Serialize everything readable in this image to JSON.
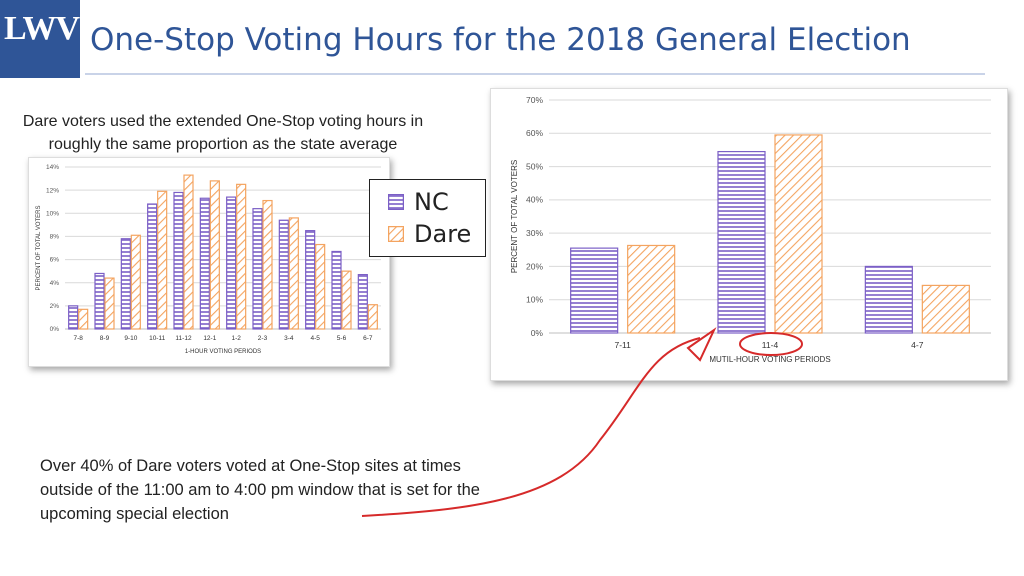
{
  "slide": {
    "logo_text": "LWV",
    "title": "One-Stop Voting Hours for the 2018 General Election",
    "caption_top": "Dare voters used the extended One-Stop voting hours in roughly the same proportion as the state average",
    "caption_bottom": "Over 40% of Dare voters voted at One-Stop sites at times outside of the 11:00 am to 4:00 pm window that is set for the upcoming special election"
  },
  "legend": {
    "items": [
      {
        "label": "NC",
        "color": "#7b5fc6"
      },
      {
        "label": "Dare",
        "color": "#f4a460"
      }
    ]
  },
  "colors": {
    "nc": "#7b5fc6",
    "dare": "#f4a460",
    "grid": "#d9d9d9",
    "annotation": "#d62a2a",
    "title": "#2f5597"
  },
  "chart_data": [
    {
      "type": "bar",
      "xlabel": "1-HOUR VOTING PERIODS",
      "ylabel": "PERCENT OF TOTAL VOTERS",
      "categories": [
        "7-8",
        "8-9",
        "9-10",
        "10-11",
        "11-12",
        "12-1",
        "1-2",
        "2-3",
        "3-4",
        "4-5",
        "5-6",
        "6-7"
      ],
      "series": [
        {
          "name": "NC",
          "values": [
            2.0,
            4.8,
            7.8,
            10.8,
            11.8,
            11.3,
            11.4,
            10.4,
            9.4,
            8.5,
            6.7,
            4.7
          ]
        },
        {
          "name": "Dare",
          "values": [
            1.7,
            4.4,
            8.1,
            11.9,
            13.3,
            12.8,
            12.5,
            11.1,
            9.6,
            7.3,
            5.0,
            2.1
          ]
        }
      ],
      "ylim": [
        0,
        14
      ],
      "yticks": [
        0,
        2,
        4,
        6,
        8,
        10,
        12,
        14
      ],
      "ytick_suffix": "%",
      "grid": true
    },
    {
      "type": "bar",
      "xlabel": "MUTIL-HOUR VOTING PERIODS",
      "ylabel": "PERCENT OF TOTAL VOTERS",
      "categories": [
        "7-11",
        "11-4",
        "4-7"
      ],
      "series": [
        {
          "name": "NC",
          "values": [
            25.5,
            54.5,
            20.0
          ]
        },
        {
          "name": "Dare",
          "values": [
            26.3,
            59.5,
            14.3
          ]
        }
      ],
      "ylim": [
        0,
        70
      ],
      "yticks": [
        0,
        10,
        20,
        30,
        40,
        50,
        60,
        70
      ],
      "ytick_suffix": "%",
      "grid": true
    }
  ]
}
